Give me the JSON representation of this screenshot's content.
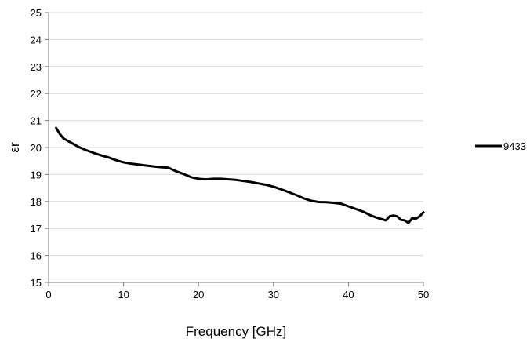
{
  "chart_data": {
    "type": "line",
    "title": "",
    "xlabel": "Frequency [GHz]",
    "ylabel": "εr",
    "xlim": [
      0,
      50
    ],
    "ylim": [
      15,
      25
    ],
    "xticks": [
      0,
      10,
      20,
      30,
      40,
      50
    ],
    "yticks": [
      15,
      16,
      17,
      18,
      19,
      20,
      21,
      22,
      23,
      24,
      25
    ],
    "grid": "horizontal",
    "legend_position": "right",
    "series": [
      {
        "name": "9433",
        "color": "#000000",
        "x": [
          1,
          1.5,
          2,
          3,
          4,
          5,
          6,
          7,
          8,
          9,
          10,
          11,
          12,
          13,
          14,
          15,
          16,
          17,
          18,
          19,
          20,
          21,
          22,
          23,
          24,
          25,
          26,
          27,
          28,
          29,
          30,
          31,
          32,
          33,
          34,
          35,
          36,
          37,
          38,
          39,
          40,
          41,
          42,
          43,
          44,
          45,
          45.5,
          46,
          46.5,
          47,
          47.5,
          48,
          48.5,
          49,
          49.5,
          50
        ],
        "values": [
          20.72,
          20.5,
          20.33,
          20.18,
          20.02,
          19.9,
          19.8,
          19.71,
          19.63,
          19.53,
          19.45,
          19.4,
          19.37,
          19.33,
          19.3,
          19.27,
          19.25,
          19.12,
          19.02,
          18.9,
          18.84,
          18.82,
          18.84,
          18.84,
          18.82,
          18.8,
          18.76,
          18.72,
          18.67,
          18.62,
          18.55,
          18.45,
          18.35,
          18.24,
          18.12,
          18.03,
          17.98,
          17.97,
          17.95,
          17.92,
          17.82,
          17.72,
          17.62,
          17.48,
          17.38,
          17.3,
          17.45,
          17.48,
          17.45,
          17.32,
          17.3,
          17.2,
          17.38,
          17.36,
          17.45,
          17.6
        ]
      }
    ]
  }
}
